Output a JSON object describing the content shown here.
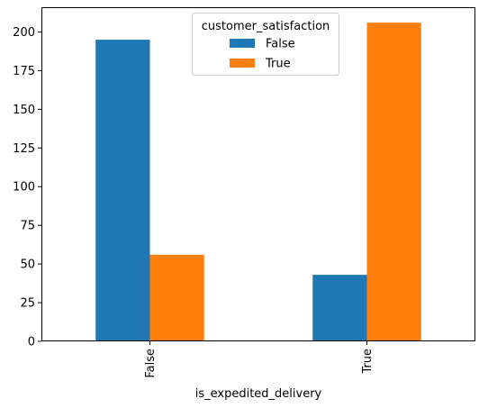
{
  "chart_data": {
    "type": "bar",
    "categories": [
      "False",
      "True"
    ],
    "series": [
      {
        "name": "False",
        "values": [
          195,
          43
        ],
        "color": "#1f77b4"
      },
      {
        "name": "True",
        "values": [
          56,
          206
        ],
        "color": "#ff7f0e"
      }
    ],
    "xlabel": "is_expedited_delivery",
    "ylabel": "",
    "ylim": [
      0,
      216
    ],
    "yticks": [
      0,
      25,
      50,
      75,
      100,
      125,
      150,
      175,
      200
    ],
    "legend": {
      "title": "customer_satisfaction",
      "placement": "top-center"
    },
    "grid": false
  }
}
